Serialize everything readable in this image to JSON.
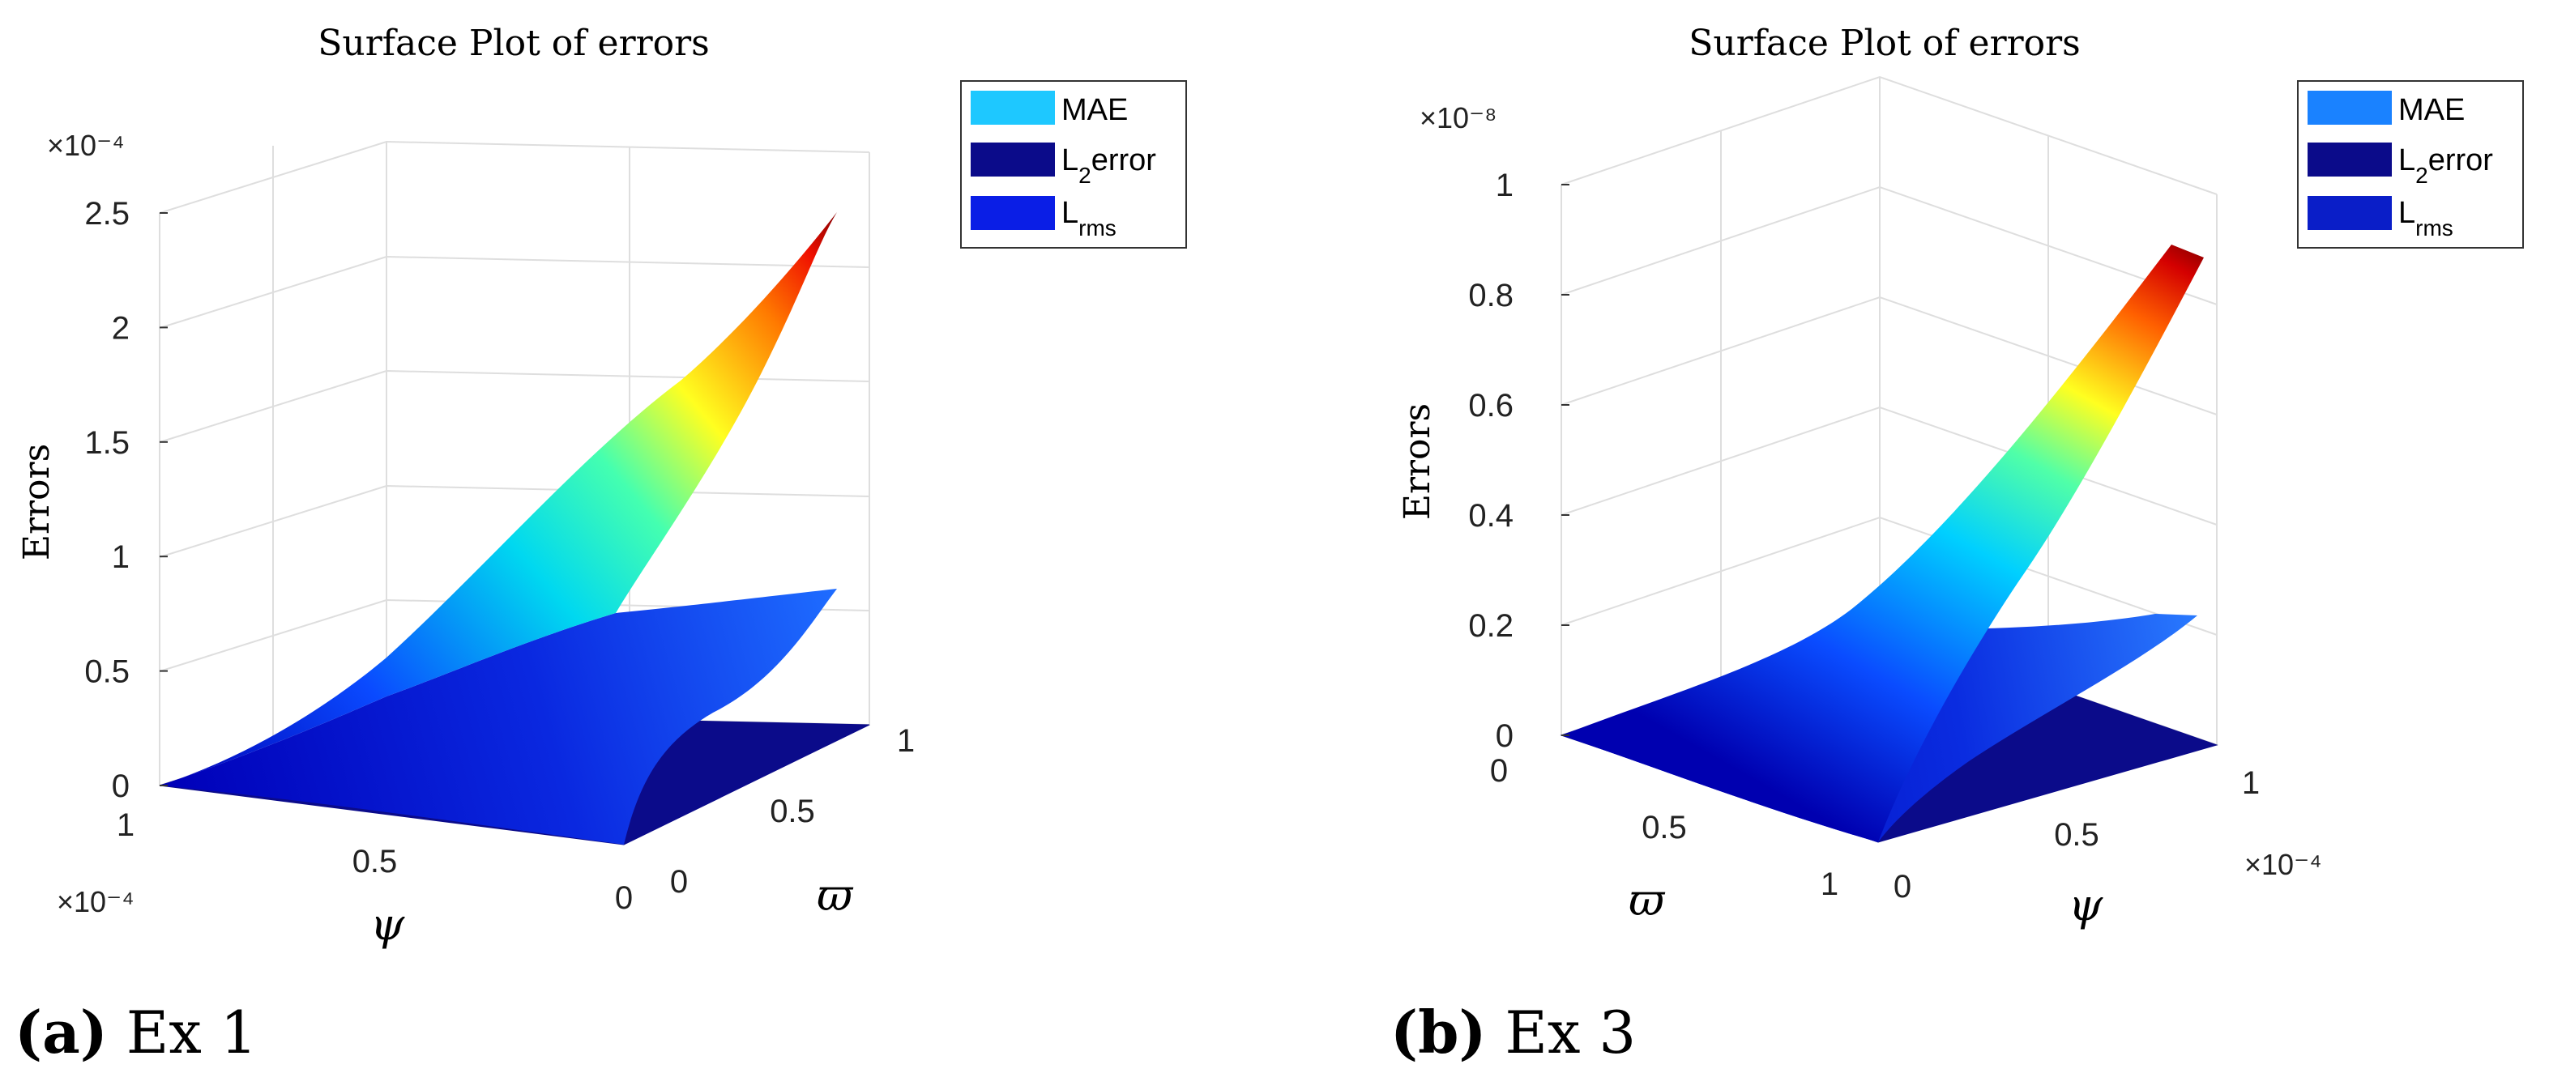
{
  "chart_data": [
    {
      "type": "surface",
      "title": "Surface Plot of errors",
      "zlabel": "Errors",
      "z_multiplier": "×10⁻⁴",
      "zlim": [
        0,
        0.00025
      ],
      "z_ticks": [
        "0",
        "0.5",
        "1",
        "1.5",
        "2",
        "2.5"
      ],
      "x_axis": {
        "label": "ψ",
        "multiplier": "×10⁻⁴",
        "ticks": [
          "1",
          "0.5",
          "0"
        ],
        "range": [
          0,
          0.0001
        ]
      },
      "y_axis": {
        "label": "ϖ",
        "ticks": [
          "0",
          "0.5",
          "1"
        ],
        "range": [
          0,
          1
        ]
      },
      "series": [
        {
          "name": "MAE",
          "swatch": "#1ec8ff",
          "corner_values": {
            "psi0_varpi0": 0,
            "psi0_varpi1": 0,
            "psi1_varpi0": 0,
            "psi1_varpi1": 0.00025
          }
        },
        {
          "name": "L2error",
          "swatch": "#0b0b8a",
          "corner_values": {
            "psi0_varpi0": 0,
            "psi0_varpi1": 0,
            "psi1_varpi0": 0,
            "psi1_varpi1": 0
          }
        },
        {
          "name": "Lrms",
          "swatch": "#0a1ee6",
          "corner_values": {
            "psi0_varpi0": 0,
            "psi0_varpi1": 0,
            "psi1_varpi0": 0,
            "psi1_varpi1": 8.75e-05
          }
        }
      ],
      "legend_position": "top-right",
      "colormap": "jet",
      "grid": true
    },
    {
      "type": "surface",
      "title": "Surface Plot of errors",
      "zlabel": "Errors",
      "z_multiplier": "×10⁻⁸",
      "zlim": [
        0,
        1e-08
      ],
      "z_ticks": [
        "0",
        "0.2",
        "0.4",
        "0.6",
        "0.8",
        "1"
      ],
      "x_axis": {
        "label": "ϖ",
        "ticks": [
          "0",
          "0.5",
          "1"
        ],
        "range": [
          0,
          1
        ]
      },
      "y_axis": {
        "label": "ψ",
        "multiplier": "×10⁻⁴",
        "ticks": [
          "0",
          "0.5",
          "1"
        ],
        "range": [
          0,
          0.0001
        ]
      },
      "series": [
        {
          "name": "MAE",
          "swatch": "#1a82ff",
          "corner_values": {
            "psi0_varpi0": 0,
            "psi0_varpi1": 0,
            "psi1_varpi0": 0,
            "psi1_varpi1": 9e-09
          }
        },
        {
          "name": "L2error",
          "swatch": "#0b0b8a",
          "corner_values": {
            "psi0_varpi0": 0,
            "psi0_varpi1": 0,
            "psi1_varpi0": 0,
            "psi1_varpi1": 0
          }
        },
        {
          "name": "Lrms",
          "swatch": "#0a1ec8",
          "corner_values": {
            "psi0_varpi0": 0,
            "psi0_varpi1": 0,
            "psi1_varpi0": 0,
            "psi1_varpi1": 2.2e-09
          }
        }
      ],
      "legend_position": "top-right",
      "colormap": "jet",
      "grid": true
    }
  ],
  "captions": [
    {
      "letter": "(a)",
      "text": "Ex 1"
    },
    {
      "letter": "(b)",
      "text": "Ex 3"
    }
  ]
}
